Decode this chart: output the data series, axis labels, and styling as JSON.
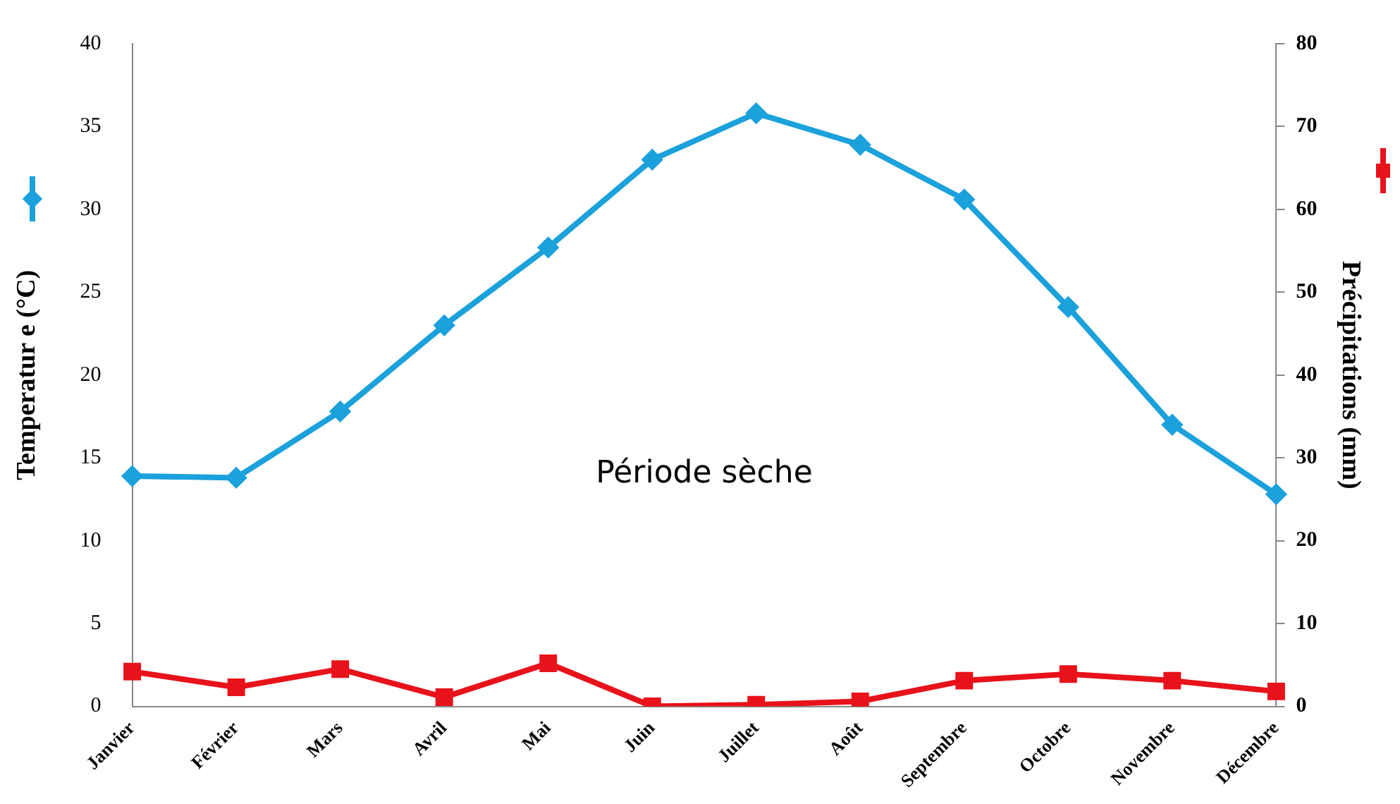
{
  "chart_data": {
    "type": "line",
    "ylabel": "Temperatur e (°C)",
    "y2label": "Précipitations (mm)",
    "annotations": [
      "Période sèche"
    ],
    "categories": [
      "Janvier",
      "Février",
      "Mars",
      "Avril",
      "Mai",
      "Juin",
      "Juillet",
      "Août",
      "Septembre",
      "Octobre",
      "Novembre",
      "Décembre"
    ],
    "series": [
      {
        "color": "#1ba1db",
        "marker": "diamond",
        "values": [
          13.9,
          13.8,
          17.8,
          23.0,
          27.7,
          33.0,
          35.8,
          33.9,
          30.6,
          24.1,
          17.0,
          12.8
        ]
      },
      {
        "color": "#e8121a",
        "marker": "square",
        "axis": "y2",
        "values": [
          4.2,
          2.3,
          4.5,
          1.1,
          5.2,
          0,
          0.2,
          0.6,
          3.1,
          3.9,
          3.1,
          1.8
        ]
      }
    ],
    "ylim": [
      0,
      40
    ],
    "yticks": [
      0,
      5,
      10,
      15,
      20,
      25,
      30,
      35,
      40
    ],
    "y2lim": [
      0,
      80
    ],
    "y2ticks": [
      0,
      10,
      20,
      30,
      40,
      50,
      60,
      70,
      80
    ],
    "grid": false,
    "legend": false
  }
}
